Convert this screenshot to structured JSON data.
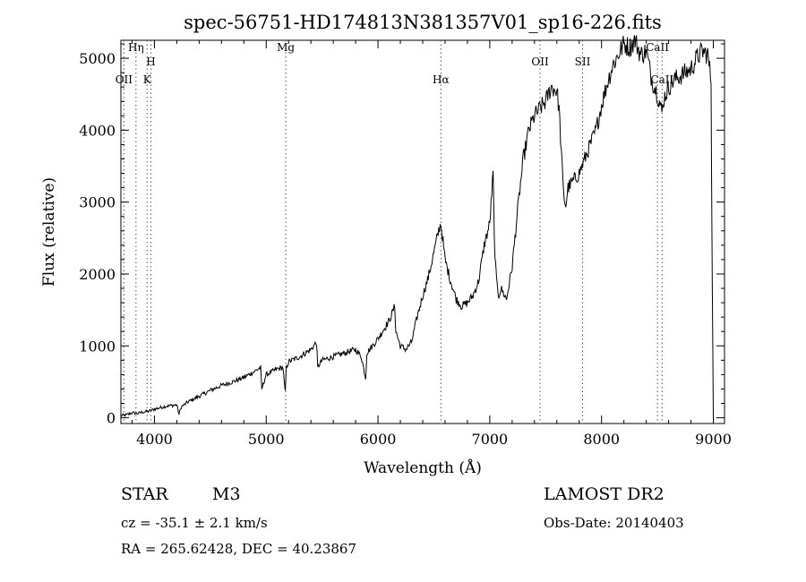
{
  "chart_data": {
    "type": "line",
    "title": "spec-56751-HD174813N381357V01_sp16-226.fits",
    "xlabel": "Wavelength (Å)",
    "ylabel": "Flux (relative)",
    "xlim": [
      3700,
      9100
    ],
    "ylim": [
      -80,
      5250
    ],
    "xticks": [
      4000,
      5000,
      6000,
      7000,
      8000,
      9000
    ],
    "yticks": [
      0,
      1000,
      2000,
      3000,
      4000,
      5000
    ],
    "grid": false,
    "legend": "none",
    "line_color": "#000000",
    "lines": [
      {
        "label": "Hη",
        "x": 3835,
        "y": 5100
      },
      {
        "label": "OII",
        "x": 3727,
        "y": 4650
      },
      {
        "label": "H",
        "x": 3968,
        "y": 4900
      },
      {
        "label": "K",
        "x": 3934,
        "y": 4650
      },
      {
        "label": "Mg",
        "x": 5175,
        "y": 5100
      },
      {
        "label": "Hα",
        "x": 6563,
        "y": 4650
      },
      {
        "label": "OII",
        "x": 7450,
        "y": 4900
      },
      {
        "label": "SII",
        "x": 7830,
        "y": 4900
      },
      {
        "label": "CaII",
        "x": 8500,
        "y": 5100
      },
      {
        "label": "CaII",
        "x": 8542,
        "y": 4650
      }
    ],
    "series": [
      {
        "x": [
          3700,
          3750,
          3800,
          3850,
          3900,
          3950,
          4000,
          4050,
          4100,
          4150,
          4200,
          4220,
          4240,
          4300,
          4400,
          4500,
          4600,
          4700,
          4800,
          4900,
          4950,
          4960,
          5000,
          5100,
          5150,
          5170,
          5180,
          5200,
          5300,
          5400,
          5450,
          5460,
          5500,
          5600,
          5700,
          5800,
          5850,
          5890,
          5900,
          5950,
          6000,
          6100,
          6150,
          6160,
          6200,
          6250,
          6300,
          6350,
          6400,
          6450,
          6500,
          6550,
          6563,
          6600,
          6650,
          6700,
          6750,
          6800,
          6850,
          6900,
          6950,
          7000,
          7030,
          7040,
          7060,
          7080,
          7100,
          7150,
          7200,
          7250,
          7300,
          7350,
          7400,
          7450,
          7500,
          7550,
          7600,
          7620,
          7640,
          7660,
          7680,
          7700,
          7750,
          7800,
          7850,
          7900,
          7950,
          8000,
          8050,
          8100,
          8150,
          8200,
          8250,
          8300,
          8350,
          8400,
          8450,
          8500,
          8540,
          8560,
          8600,
          8650,
          8700,
          8750,
          8800,
          8850,
          8900,
          8950,
          8980,
          8990,
          9000
        ],
        "y": [
          30,
          40,
          70,
          60,
          80,
          90,
          120,
          140,
          160,
          170,
          180,
          50,
          150,
          220,
          300,
          380,
          450,
          500,
          560,
          650,
          700,
          400,
          600,
          680,
          700,
          350,
          700,
          780,
          850,
          950,
          1050,
          700,
          800,
          850,
          900,
          950,
          850,
          550,
          900,
          1000,
          1100,
          1350,
          1550,
          1200,
          1000,
          950,
          1050,
          1400,
          1700,
          1950,
          2300,
          2650,
          2700,
          2200,
          1900,
          1650,
          1550,
          1600,
          1700,
          1900,
          2400,
          2700,
          3400,
          2500,
          1900,
          1700,
          1800,
          1650,
          2100,
          2900,
          3600,
          4000,
          4200,
          4300,
          4400,
          4600,
          4550,
          4300,
          3700,
          3100,
          2950,
          3200,
          3300,
          3400,
          3600,
          3800,
          4000,
          4350,
          4650,
          4900,
          5050,
          5200,
          5150,
          5250,
          5050,
          5100,
          4700,
          4500,
          4250,
          4450,
          4600,
          4700,
          4750,
          4800,
          4850,
          5000,
          5100,
          5050,
          4700,
          2000,
          0
        ]
      }
    ]
  },
  "info": {
    "object_type": "STAR",
    "subclass": "M3",
    "survey": "LAMOST DR2",
    "cz": "cz = -35.1 ± 2.1 km/s",
    "obs_date": "Obs-Date: 20140403",
    "coords": "RA = 265.62428, DEC =  40.23867"
  }
}
